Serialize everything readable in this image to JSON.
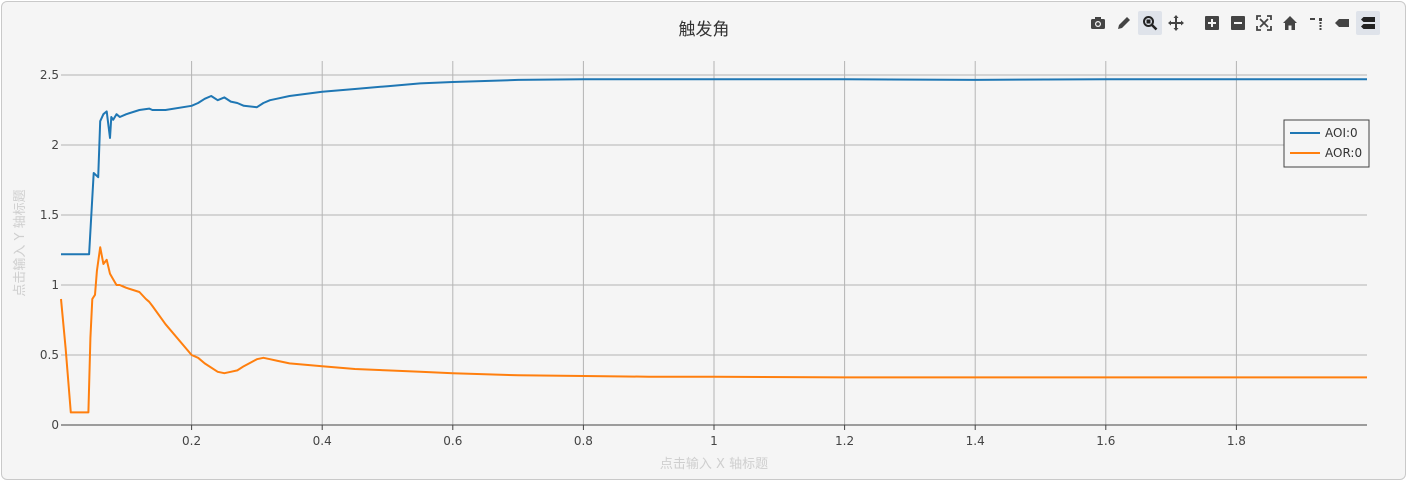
{
  "modebar": {
    "buttons": [
      {
        "name": "camera-icon",
        "active": false
      },
      {
        "name": "pencil-icon",
        "active": false
      },
      {
        "name": "zoom-icon",
        "active": true
      },
      {
        "name": "pan-icon",
        "active": false
      },
      {
        "name": "zoom-in-icon",
        "active": false
      },
      {
        "name": "zoom-out-icon",
        "active": false
      },
      {
        "name": "autoscale-icon",
        "active": false
      },
      {
        "name": "home-icon",
        "active": false
      },
      {
        "name": "spike-lines-icon",
        "active": false
      },
      {
        "name": "hover-closest-icon",
        "active": false
      },
      {
        "name": "hover-compare-icon",
        "active": true
      }
    ]
  },
  "chart_data": {
    "type": "line",
    "title": "触发角",
    "xlabel": "点击输入 X 轴标题",
    "ylabel": "点击输入 Y 轴标题",
    "xlim": [
      0,
      2.0
    ],
    "ylim": [
      0,
      2.6
    ],
    "x_ticks": [
      "0.2",
      "0.4",
      "0.6",
      "0.8",
      "1",
      "1.2",
      "1.4",
      "1.6",
      "1.8"
    ],
    "x_tick_values": [
      0.2,
      0.4,
      0.6,
      0.8,
      1.0,
      1.2,
      1.4,
      1.6,
      1.8
    ],
    "y_ticks": [
      "0",
      "0.5",
      "1",
      "1.5",
      "2",
      "2.5"
    ],
    "y_tick_values": [
      0,
      0.5,
      1.0,
      1.5,
      2.0,
      2.5
    ],
    "grid": true,
    "legend_position": "right",
    "series": [
      {
        "name": "AOI:0",
        "color": "#1f77b4",
        "x": [
          0.0,
          0.043,
          0.05,
          0.057,
          0.06,
          0.065,
          0.07,
          0.075,
          0.077,
          0.08,
          0.085,
          0.09,
          0.1,
          0.12,
          0.135,
          0.14,
          0.16,
          0.2,
          0.21,
          0.22,
          0.23,
          0.24,
          0.25,
          0.26,
          0.27,
          0.28,
          0.3,
          0.31,
          0.32,
          0.33,
          0.35,
          0.4,
          0.45,
          0.5,
          0.55,
          0.6,
          0.7,
          0.8,
          0.9,
          1.0,
          1.2,
          1.4,
          1.6,
          1.8,
          2.0
        ],
        "y": [
          1.22,
          1.22,
          1.8,
          1.77,
          2.17,
          2.22,
          2.24,
          2.05,
          2.2,
          2.18,
          2.22,
          2.2,
          2.22,
          2.25,
          2.26,
          2.25,
          2.25,
          2.28,
          2.3,
          2.33,
          2.35,
          2.32,
          2.34,
          2.31,
          2.3,
          2.28,
          2.27,
          2.3,
          2.32,
          2.33,
          2.35,
          2.38,
          2.4,
          2.42,
          2.44,
          2.45,
          2.465,
          2.47,
          2.47,
          2.47,
          2.47,
          2.465,
          2.47,
          2.47,
          2.47
        ]
      },
      {
        "name": "AOR:0",
        "color": "#ff7f0e",
        "x": [
          0.0,
          0.007,
          0.015,
          0.042,
          0.045,
          0.048,
          0.052,
          0.055,
          0.06,
          0.065,
          0.07,
          0.075,
          0.08,
          0.085,
          0.09,
          0.095,
          0.1,
          0.12,
          0.13,
          0.135,
          0.14,
          0.16,
          0.2,
          0.21,
          0.22,
          0.24,
          0.25,
          0.26,
          0.27,
          0.28,
          0.3,
          0.31,
          0.32,
          0.33,
          0.35,
          0.4,
          0.45,
          0.5,
          0.55,
          0.6,
          0.7,
          0.8,
          0.9,
          1.0,
          1.2,
          1.4,
          1.6,
          1.8,
          2.0
        ],
        "y": [
          0.9,
          0.55,
          0.09,
          0.09,
          0.62,
          0.9,
          0.93,
          1.1,
          1.27,
          1.15,
          1.18,
          1.08,
          1.04,
          1.0,
          1.0,
          0.99,
          0.98,
          0.95,
          0.9,
          0.88,
          0.85,
          0.72,
          0.5,
          0.48,
          0.44,
          0.38,
          0.37,
          0.38,
          0.39,
          0.42,
          0.47,
          0.48,
          0.47,
          0.46,
          0.44,
          0.42,
          0.4,
          0.39,
          0.38,
          0.37,
          0.355,
          0.35,
          0.345,
          0.345,
          0.34,
          0.34,
          0.34,
          0.34,
          0.34
        ]
      }
    ]
  }
}
